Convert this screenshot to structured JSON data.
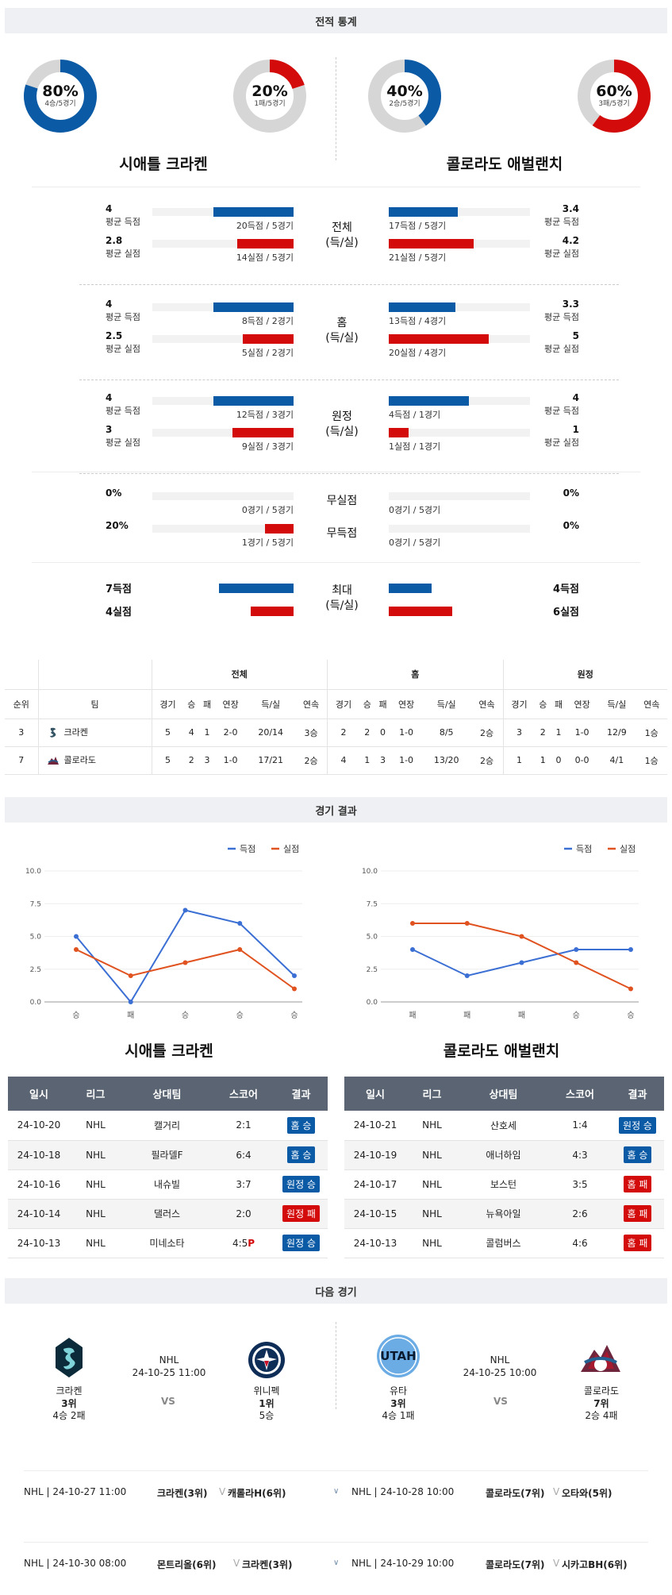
{
  "sections": {
    "stats": "전적 통계",
    "results": "경기 결과",
    "next": "다음 경기"
  },
  "colors": {
    "blue": "#0b5aa6",
    "red": "#d40b0b",
    "orange": "#e0521f",
    "line_blue": "#3b6fd4"
  },
  "donuts": [
    {
      "pct": "80%",
      "sub": "4승/5경기",
      "value": 0.8,
      "color": "#0b5aa6"
    },
    {
      "pct": "20%",
      "sub": "1패/5경기",
      "value": 0.2,
      "color": "#d40b0b"
    },
    {
      "pct": "40%",
      "sub": "2승/5경기",
      "value": 0.4,
      "color": "#0b5aa6"
    },
    {
      "pct": "60%",
      "sub": "3패/5경기",
      "value": 0.6,
      "color": "#d40b0b"
    }
  ],
  "teams": {
    "home": "시애틀 크라켄",
    "away": "콜로라도 애벌랜치"
  },
  "stat_groups": [
    {
      "cat": "전체\n(득/실)",
      "left": [
        {
          "val": "4",
          "lbl": "평균 득점",
          "cap": "20득점 / 5경기",
          "ratio": 0.57,
          "color": "blue"
        },
        {
          "val": "2.8",
          "lbl": "평균 실점",
          "cap": "14실점 / 5경기",
          "ratio": 0.4,
          "color": "red"
        }
      ],
      "right": [
        {
          "val": "3.4",
          "lbl": "평균 득점",
          "cap": "17득점 / 5경기",
          "ratio": 0.49,
          "color": "blue"
        },
        {
          "val": "4.2",
          "lbl": "평균 실점",
          "cap": "21실점 / 5경기",
          "ratio": 0.6,
          "color": "red"
        }
      ]
    },
    {
      "cat": "홈\n(득/실)",
      "left": [
        {
          "val": "4",
          "lbl": "평균 득점",
          "cap": "8득점 / 2경기",
          "ratio": 0.57,
          "color": "blue"
        },
        {
          "val": "2.5",
          "lbl": "평균 실점",
          "cap": "5실점 / 2경기",
          "ratio": 0.36,
          "color": "red"
        }
      ],
      "right": [
        {
          "val": "3.3",
          "lbl": "평균 득점",
          "cap": "13득점 / 4경기",
          "ratio": 0.47,
          "color": "blue"
        },
        {
          "val": "5",
          "lbl": "평균 실점",
          "cap": "20실점 / 4경기",
          "ratio": 0.71,
          "color": "red"
        }
      ]
    },
    {
      "cat": "원정\n(득/실)",
      "left": [
        {
          "val": "4",
          "lbl": "평균 득점",
          "cap": "12득점 / 3경기",
          "ratio": 0.57,
          "color": "blue"
        },
        {
          "val": "3",
          "lbl": "평균 실점",
          "cap": "9실점 / 3경기",
          "ratio": 0.43,
          "color": "red"
        }
      ],
      "right": [
        {
          "val": "4",
          "lbl": "평균 득점",
          "cap": "4득점 / 1경기",
          "ratio": 0.57,
          "color": "blue"
        },
        {
          "val": "1",
          "lbl": "평균 실점",
          "cap": "1실점 / 1경기",
          "ratio": 0.14,
          "color": "red"
        }
      ]
    }
  ],
  "shutouts": {
    "cats": [
      "무실점",
      "무득점"
    ],
    "left": [
      {
        "val": "0%",
        "cap": "0경기 / 5경기",
        "ratio": 0,
        "color": "red"
      },
      {
        "val": "20%",
        "cap": "1경기 / 5경기",
        "ratio": 0.2,
        "color": "red"
      }
    ],
    "right": [
      {
        "val": "0%",
        "cap": "0경기 / 5경기",
        "ratio": 0,
        "color": "blue"
      },
      {
        "val": "0%",
        "cap": "0경기 / 5경기",
        "ratio": 0,
        "color": "blue"
      }
    ]
  },
  "max": {
    "cat": "최대\n(득/실)",
    "left": [
      {
        "val": "7득점",
        "ratio": 0.75,
        "color": "blue"
      },
      {
        "val": "4실점",
        "ratio": 0.43,
        "color": "red"
      }
    ],
    "right": [
      {
        "val": "4득점",
        "ratio": 0.43,
        "color": "blue"
      },
      {
        "val": "6실점",
        "ratio": 0.64,
        "color": "red"
      }
    ]
  },
  "standings": {
    "groups": [
      "전체",
      "홈",
      "원정"
    ],
    "head": [
      "순위",
      "팀"
    ],
    "cols": [
      "경기",
      "승",
      "패",
      "연장",
      "득/실",
      "연속"
    ],
    "rows": [
      {
        "rank": "3",
        "team": "크라켄",
        "logo": "kraken",
        "cells": [
          "5",
          "4",
          "1",
          "2-0",
          "20/14",
          "3승",
          "2",
          "2",
          "0",
          "1-0",
          "8/5",
          "2승",
          "3",
          "2",
          "1",
          "1-0",
          "12/9",
          "1승"
        ]
      },
      {
        "rank": "7",
        "team": "콜로라도",
        "logo": "avalanche",
        "cells": [
          "5",
          "2",
          "3",
          "1-0",
          "17/21",
          "2승",
          "4",
          "1",
          "3",
          "1-0",
          "13/20",
          "2승",
          "1",
          "1",
          "0",
          "0-0",
          "4/1",
          "1승"
        ]
      }
    ]
  },
  "legend": {
    "score": "득점",
    "concede": "실점"
  },
  "chart_data": [
    {
      "type": "line",
      "categories": [
        "승",
        "패",
        "승",
        "승",
        "승"
      ],
      "ylim": [
        0,
        10
      ],
      "yticks": [
        "0.0",
        "2.5",
        "5.0",
        "7.5",
        "10.0"
      ],
      "series": [
        {
          "name": "득점",
          "values": [
            5,
            0,
            7,
            6,
            2
          ]
        },
        {
          "name": "실점",
          "values": [
            4,
            2,
            3,
            4,
            1
          ]
        }
      ]
    },
    {
      "type": "line",
      "categories": [
        "패",
        "패",
        "패",
        "승",
        "승"
      ],
      "ylim": [
        0,
        10
      ],
      "yticks": [
        "0.0",
        "2.5",
        "5.0",
        "7.5",
        "10.0"
      ],
      "series": [
        {
          "name": "득점",
          "values": [
            4,
            2,
            3,
            4,
            4
          ]
        },
        {
          "name": "실점",
          "values": [
            6,
            6,
            5,
            3,
            1
          ]
        }
      ]
    }
  ],
  "results": {
    "head": [
      "일시",
      "리그",
      "상대팀",
      "스코어",
      "결과"
    ],
    "left_title": "시애틀 크라켄",
    "right_title": "콜로라도 애벌랜치",
    "left": [
      {
        "date": "24-10-20",
        "league": "NHL",
        "opp": "캘거리",
        "score": "2:1",
        "ot": "",
        "res": "홈 승",
        "win": true
      },
      {
        "date": "24-10-18",
        "league": "NHL",
        "opp": "필라델F",
        "score": "6:4",
        "ot": "",
        "res": "홈 승",
        "win": true
      },
      {
        "date": "24-10-16",
        "league": "NHL",
        "opp": "내슈빌",
        "score": "3:7",
        "ot": "",
        "res": "원정 승",
        "win": true
      },
      {
        "date": "24-10-14",
        "league": "NHL",
        "opp": "댈러스",
        "score": "2:0",
        "ot": "",
        "res": "원정 패",
        "win": false
      },
      {
        "date": "24-10-13",
        "league": "NHL",
        "opp": "미네소타",
        "score": "4:5",
        "ot": "P",
        "res": "원정 승",
        "win": true
      }
    ],
    "right": [
      {
        "date": "24-10-21",
        "league": "NHL",
        "opp": "산호세",
        "score": "1:4",
        "ot": "",
        "res": "원정 승",
        "win": true
      },
      {
        "date": "24-10-19",
        "league": "NHL",
        "opp": "애너하임",
        "score": "4:3",
        "ot": "",
        "res": "홈 승",
        "win": true
      },
      {
        "date": "24-10-17",
        "league": "NHL",
        "opp": "보스턴",
        "score": "3:5",
        "ot": "",
        "res": "홈 패",
        "win": false
      },
      {
        "date": "24-10-15",
        "league": "NHL",
        "opp": "뉴욕아일",
        "score": "2:6",
        "ot": "",
        "res": "홈 패",
        "win": false
      },
      {
        "date": "24-10-13",
        "league": "NHL",
        "opp": "콜럼버스",
        "score": "4:6",
        "ot": "",
        "res": "홈 패",
        "win": false
      }
    ]
  },
  "next": {
    "left": {
      "league": "NHL",
      "datetime": "24-10-25 11:00",
      "vs": "VS",
      "t1": {
        "name": "크라켄",
        "rank": "3위",
        "rec": "4승 2패"
      },
      "t2": {
        "name": "위니펙",
        "rank": "1위",
        "rec": "5승"
      }
    },
    "right": {
      "league": "NHL",
      "datetime": "24-10-25 10:00",
      "vs": "VS",
      "t1": {
        "name": "유타",
        "rank": "3위",
        "rec": "4승 1패",
        "logo_text": "UTAH"
      },
      "t2": {
        "name": "콜로라도",
        "rank": "7위",
        "rec": "2승 4패"
      }
    }
  },
  "upcoming": [
    {
      "left": {
        "meta": "NHL | 24-10-27 11:00",
        "t1": "크라켄(3위)",
        "t2": "캐롤라H(6위)"
      },
      "right": {
        "meta": "NHL | 24-10-28 10:00",
        "t1": "콜로라도(7위)",
        "t2": "오타와(5위)"
      }
    },
    {
      "left": {
        "meta": "NHL | 24-10-30 08:00",
        "t1": "몬트리올(6위)",
        "t2": "크라켄(3위)"
      },
      "right": {
        "meta": "NHL | 24-10-29 10:00",
        "t1": "콜로라도(7위)",
        "t2": "시카고BH(6위)"
      }
    }
  ]
}
